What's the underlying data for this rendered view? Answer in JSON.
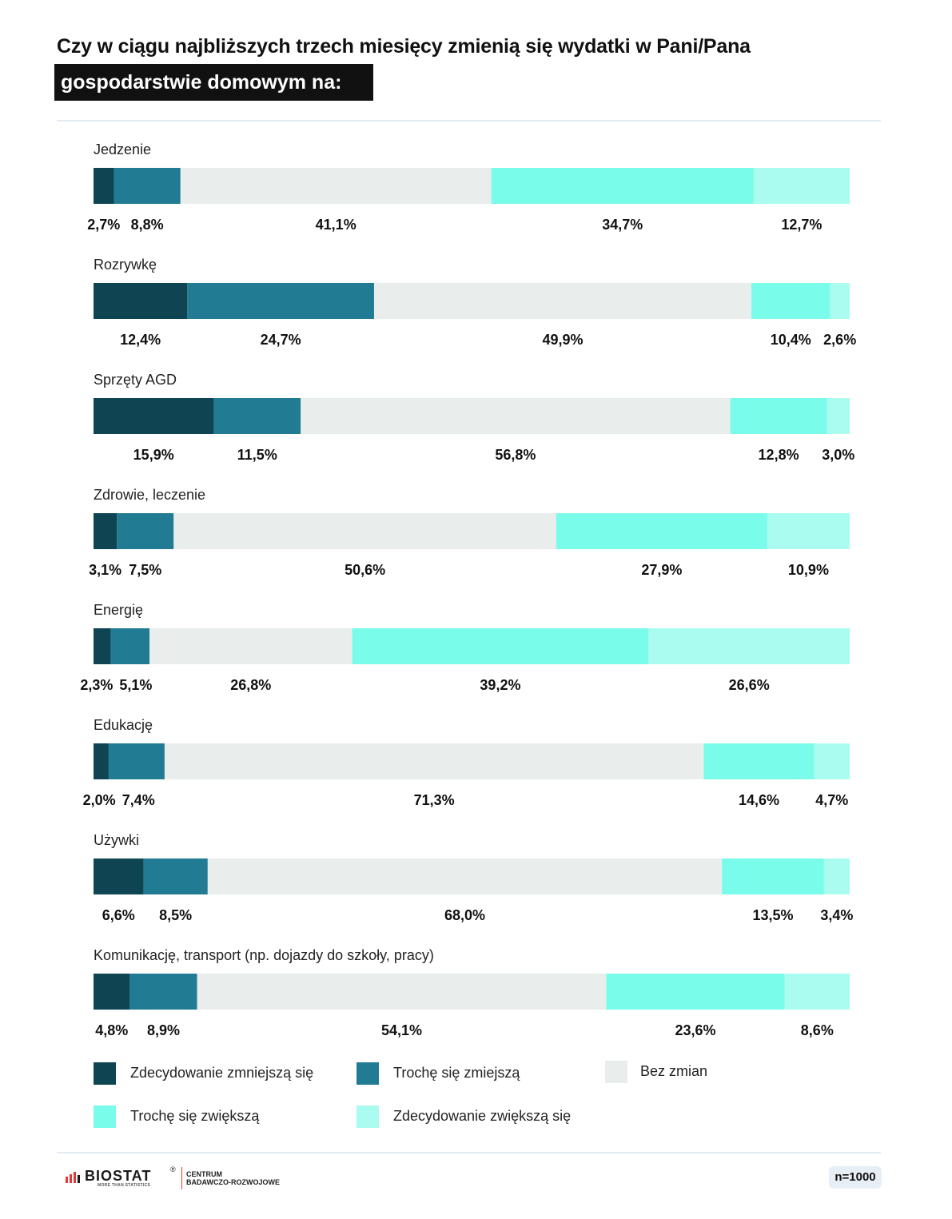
{
  "title": {
    "line1": "Czy w ciągu najbliższych trzech miesięcy zmienią się wydatki w Pani/Pana",
    "line2": "gospodarstwie domowym na:"
  },
  "chart_data": {
    "type": "bar",
    "orientation": "horizontal",
    "stacked": true,
    "value_unit": "%",
    "categories": [
      "Jedzenie",
      "Rozrywkę",
      "Sprzęty AGD",
      "Zdrowie, leczenie",
      "Energię",
      "Edukację",
      "Używki",
      "Komunikację, transport (np. dojazdy do szkoły, pracy)"
    ],
    "series": [
      {
        "name": "Zdecydowanie zmniejszą się",
        "color": "#0f4452",
        "values": [
          2.7,
          12.4,
          15.9,
          3.1,
          2.3,
          2.0,
          6.6,
          4.8
        ]
      },
      {
        "name": "Trochę się zmiejszą",
        "color": "#217b93",
        "values": [
          8.8,
          24.7,
          11.5,
          7.5,
          5.1,
          7.4,
          8.5,
          8.9
        ]
      },
      {
        "name": "Bez zmian",
        "color": "#e9edec",
        "values": [
          41.1,
          49.9,
          56.8,
          50.6,
          26.8,
          71.3,
          68.0,
          54.1
        ]
      },
      {
        "name": "Trochę się zwiększą",
        "color": "#79fcea",
        "values": [
          34.7,
          10.4,
          12.8,
          27.9,
          39.2,
          14.6,
          13.5,
          23.6
        ]
      },
      {
        "name": "Zdecydowanie zwiększą się",
        "color": "#abfcf0",
        "values": [
          12.7,
          2.6,
          3.0,
          10.9,
          26.6,
          4.7,
          3.4,
          8.6
        ]
      }
    ],
    "data_labels": [
      [
        "2,7%",
        "8,8%",
        "41,1%",
        "34,7%",
        "12,7%"
      ],
      [
        "12,4%",
        "24,7%",
        "49,9%",
        "10,4%",
        "2,6%"
      ],
      [
        "15,9%",
        "11,5%",
        "56,8%",
        "12,8%",
        "3,0%"
      ],
      [
        "3,1%",
        "7,5%",
        "50,6%",
        "27,9%",
        "10,9%"
      ],
      [
        "2,3%",
        "5,1%",
        "26,8%",
        "39,2%",
        "26,6%"
      ],
      [
        "2,0%",
        "7,4%",
        "71,3%",
        "14,6%",
        "4,7%"
      ],
      [
        "6,6%",
        "8,5%",
        "68,0%",
        "13,5%",
        "3,4%"
      ],
      [
        "4,8%",
        "8,9%",
        "54,1%",
        "23,6%",
        "8,6%"
      ]
    ],
    "xlim": [
      0,
      100
    ],
    "legend_position": "bottom",
    "grid": false
  },
  "legend": {
    "items": [
      "Zdecydowanie zmniejszą się",
      "Trochę się zmiejszą",
      "Bez zmian",
      "Trochę się zwiększą",
      "Zdecydowanie zwiększą się"
    ]
  },
  "footer": {
    "brand": "BIOSTAT",
    "registered_mark": "®",
    "tagline": "MORE THAN STATISTICS",
    "center_line1": "CENTRUM",
    "center_line2": "BADAWCZO-ROZWOJOWE",
    "sample": "n=1000",
    "brand_accent_color": "#e53935"
  }
}
